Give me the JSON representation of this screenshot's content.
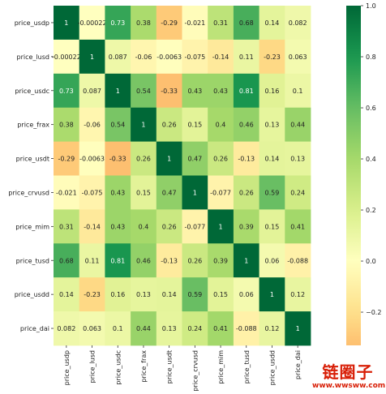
{
  "chart_data": {
    "type": "heatmap",
    "row_labels": [
      "price_usdp",
      "price_lusd",
      "price_usdc",
      "price_frax",
      "price_usdt",
      "price_crvusd",
      "price_mim",
      "price_tusd",
      "price_usdd",
      "price_dai"
    ],
    "col_labels": [
      "price_usdp",
      "price_lusd",
      "price_usdc",
      "price_frax",
      "price_usdt",
      "price_crvusd",
      "price_mim",
      "price_tusd",
      "price_usdd",
      "price_dai"
    ],
    "values": [
      [
        1,
        -0.00022,
        0.73,
        0.38,
        -0.29,
        -0.021,
        0.31,
        0.68,
        0.14,
        0.082
      ],
      [
        -0.00022,
        1,
        0.087,
        -0.06,
        -0.0063,
        -0.075,
        -0.14,
        0.11,
        -0.23,
        0.063
      ],
      [
        0.73,
        0.087,
        1,
        0.54,
        -0.33,
        0.43,
        0.43,
        0.81,
        0.16,
        0.1
      ],
      [
        0.38,
        -0.06,
        0.54,
        1,
        0.26,
        0.15,
        0.4,
        0.46,
        0.13,
        0.44
      ],
      [
        -0.29,
        -0.0063,
        -0.33,
        0.26,
        1,
        0.47,
        0.26,
        -0.13,
        0.14,
        0.13
      ],
      [
        -0.021,
        -0.075,
        0.43,
        0.15,
        0.47,
        1,
        -0.077,
        0.26,
        0.59,
        0.24
      ],
      [
        0.31,
        -0.14,
        0.43,
        0.4,
        0.26,
        -0.077,
        1,
        0.39,
        0.15,
        0.41
      ],
      [
        0.68,
        0.11,
        0.81,
        0.46,
        -0.13,
        0.26,
        0.39,
        1,
        0.06,
        -0.088
      ],
      [
        0.14,
        -0.23,
        0.16,
        0.13,
        0.14,
        0.59,
        0.15,
        0.06,
        1,
        0.12
      ],
      [
        0.082,
        0.063,
        0.1,
        0.44,
        0.13,
        0.24,
        0.41,
        -0.088,
        0.12,
        1
      ]
    ],
    "cell_labels": [
      [
        "1",
        "-0.00022",
        "0.73",
        "0.38",
        "-0.29",
        "-0.021",
        "0.31",
        "0.68",
        "0.14",
        "0.082"
      ],
      [
        "-0.00022",
        "1",
        "0.087",
        "-0.06",
        "-0.0063",
        "-0.075",
        "-0.14",
        "0.11",
        "-0.23",
        "0.063"
      ],
      [
        "0.73",
        "0.087",
        "1",
        "0.54",
        "-0.33",
        "0.43",
        "0.43",
        "0.81",
        "0.16",
        "0.1"
      ],
      [
        "0.38",
        "-0.06",
        "0.54",
        "1",
        "0.26",
        "0.15",
        "0.4",
        "0.46",
        "0.13",
        "0.44"
      ],
      [
        "-0.29",
        "-0.0063",
        "-0.33",
        "0.26",
        "1",
        "0.47",
        "0.26",
        "-0.13",
        "0.14",
        "0.13"
      ],
      [
        "-0.021",
        "-0.075",
        "0.43",
        "0.15",
        "0.47",
        "1",
        "-0.077",
        "0.26",
        "0.59",
        "0.24"
      ],
      [
        "0.31",
        "-0.14",
        "0.43",
        "0.4",
        "0.26",
        "-0.077",
        "1",
        "0.39",
        "0.15",
        "0.41"
      ],
      [
        "0.68",
        "0.11",
        "0.81",
        "0.46",
        "-0.13",
        "0.26",
        "0.39",
        "1",
        "0.06",
        "-0.088"
      ],
      [
        "0.14",
        "-0.23",
        "0.16",
        "0.13",
        "0.14",
        "0.59",
        "0.15",
        "0.06",
        "1",
        "0.12"
      ],
      [
        "0.082",
        "0.063",
        "0.1",
        "0.44",
        "0.13",
        "0.24",
        "0.41",
        "-0.088",
        "0.12",
        "1"
      ]
    ],
    "colormap": "RdYlGn",
    "vmin": -0.33,
    "vmax": 1.0,
    "colorbar_ticks": [
      1.0,
      0.8,
      0.6,
      0.4,
      0.2,
      0.0,
      -0.2
    ],
    "colorbar_tick_labels": [
      "1.0",
      "0.8",
      "0.6",
      "0.4",
      "0.2",
      "0.0",
      "−0.2"
    ],
    "title": "",
    "xlabel": "",
    "ylabel": ""
  },
  "watermark": {
    "text_main": "链圈子",
    "text_url": "www.wwsww.com",
    "color": "#d81e06"
  }
}
